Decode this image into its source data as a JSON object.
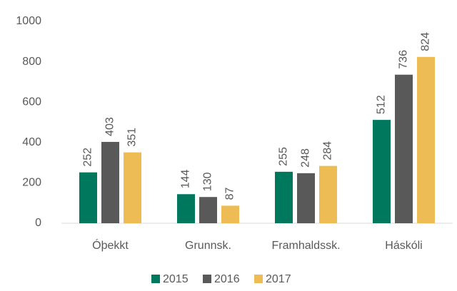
{
  "chart_data": {
    "type": "bar",
    "categories": [
      "Óþekkt",
      "Grunnsk.",
      "Framhaldssk.",
      "Háskóli"
    ],
    "series": [
      {
        "name": "2015",
        "color": "#00785e",
        "values": [
          252,
          144,
          255,
          512
        ]
      },
      {
        "name": "2016",
        "color": "#595959",
        "values": [
          403,
          130,
          248,
          736
        ]
      },
      {
        "name": "2017",
        "color": "#eebc55",
        "values": [
          351,
          87,
          284,
          824
        ]
      }
    ],
    "ylim": [
      0,
      1000
    ],
    "yticks": [
      0,
      200,
      400,
      600,
      800,
      1000
    ],
    "grid": false,
    "legend": "bottom"
  }
}
